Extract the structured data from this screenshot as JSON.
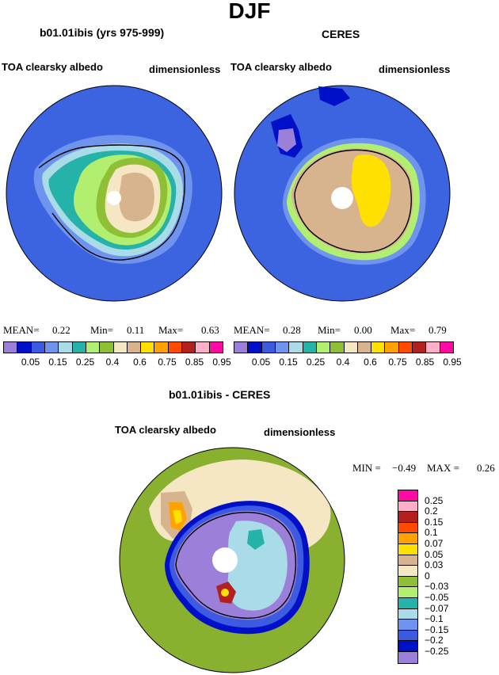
{
  "page_title": "DJF",
  "panels": [
    {
      "title": "b01.01ibis (yrs 975-999)",
      "left_label": "TOA clearsky albedo",
      "right_label": "dimensionless",
      "mean_label": "MEAN=",
      "mean": "0.22",
      "min_label": "Min=",
      "min": "0.11",
      "max_label": "Max=",
      "max": "0.63"
    },
    {
      "title": "CERES",
      "left_label": "TOA clearsky albedo",
      "right_label": "dimensionless",
      "mean_label": "MEAN=",
      "mean": "0.28",
      "min_label": "Min=",
      "min": "0.00",
      "max_label": "Max=",
      "max": "0.79"
    }
  ],
  "abs_colorbar": {
    "colors": [
      "#9b7fd9",
      "#0010c8",
      "#3c5be0",
      "#6f94ee",
      "#a9dbe8",
      "#25b2a8",
      "#b2ee6f",
      "#8ebf34",
      "#f5e6c4",
      "#d8b48e",
      "#ffe000",
      "#ffa200",
      "#ff4a00",
      "#b32020",
      "#ffb0c8",
      "#ff0aa4"
    ],
    "labels": [
      "0.05",
      "0.15",
      "0.25",
      "0.4",
      "0.6",
      "0.75",
      "0.85",
      "0.95"
    ]
  },
  "diff_panel": {
    "title": "b01.01ibis - CERES",
    "left_label": "TOA clearsky albedo",
    "right_label": "dimensionless",
    "min_label": "MIN =",
    "min": "-0.49",
    "max_label": "MAX =",
    "max": "0.26"
  },
  "diff_colorbar": {
    "colors": [
      "#ff0aa4",
      "#ffb0c8",
      "#b32020",
      "#ff4a00",
      "#ffa200",
      "#ffe000",
      "#d8b48e",
      "#f5e6c4",
      "#8ebf34",
      "#b2ee6f",
      "#25b2a8",
      "#a9dbe8",
      "#6f94ee",
      "#3c5be0",
      "#0010c8",
      "#9b7fd9"
    ],
    "labels": [
      "0.25",
      "0.2",
      "0.15",
      "0.1",
      "0.07",
      "0.05",
      "0.03",
      "0",
      "-0.03",
      "-0.05",
      "-0.07",
      "-0.1",
      "-0.15",
      "-0.2",
      "-0.25"
    ]
  },
  "map_colors": {
    "ocean": "#3c64e0",
    "diff_ocean": "#8ab030",
    "pole": "#ffffff"
  }
}
